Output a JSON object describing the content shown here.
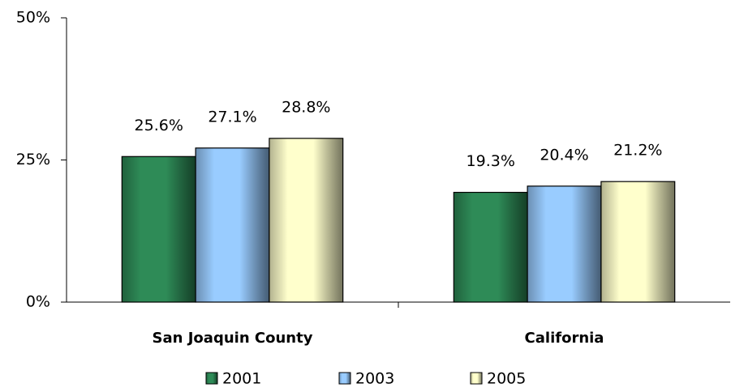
{
  "chart_data": {
    "type": "bar",
    "categories": [
      "San Joaquin County",
      "California"
    ],
    "series": [
      {
        "name": "2001",
        "color": "#2e8b57",
        "values": [
          25.6,
          19.3
        ],
        "value_labels": [
          "25.6%",
          "19.3%"
        ]
      },
      {
        "name": "2003",
        "color": "#99ccff",
        "values": [
          27.1,
          20.4
        ],
        "value_labels": [
          "27.1%",
          "20.4%"
        ]
      },
      {
        "name": "2005",
        "color": "#ffffcc",
        "values": [
          28.8,
          21.2
        ],
        "value_labels": [
          "28.8%",
          "21.2%"
        ]
      }
    ],
    "ylim": [
      0,
      50
    ],
    "yticks": [
      {
        "value": 0,
        "label": "0%"
      },
      {
        "value": 25,
        "label": "25%"
      },
      {
        "value": 50,
        "label": "50%"
      }
    ],
    "legend": "bottom"
  }
}
